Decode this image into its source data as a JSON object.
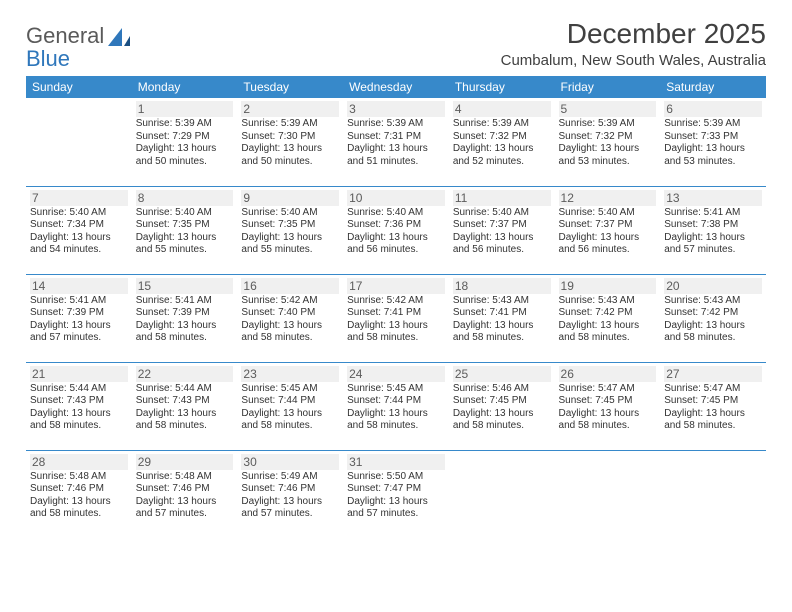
{
  "brand": {
    "part1": "General",
    "part2": "Blue"
  },
  "title": "December 2025",
  "subtitle": "Cumbalum, New South Wales, Australia",
  "colors": {
    "header_bg": "#3789ca",
    "header_fg": "#ffffff",
    "day_bg": "#f0f0f0",
    "rule": "#3789ca"
  },
  "weekdays": [
    "Sunday",
    "Monday",
    "Tuesday",
    "Wednesday",
    "Thursday",
    "Friday",
    "Saturday"
  ],
  "weeks": [
    [
      null,
      {
        "n": "1",
        "sr": "5:39 AM",
        "ss": "7:29 PM",
        "dl": "13 hours and 50 minutes."
      },
      {
        "n": "2",
        "sr": "5:39 AM",
        "ss": "7:30 PM",
        "dl": "13 hours and 50 minutes."
      },
      {
        "n": "3",
        "sr": "5:39 AM",
        "ss": "7:31 PM",
        "dl": "13 hours and 51 minutes."
      },
      {
        "n": "4",
        "sr": "5:39 AM",
        "ss": "7:32 PM",
        "dl": "13 hours and 52 minutes."
      },
      {
        "n": "5",
        "sr": "5:39 AM",
        "ss": "7:32 PM",
        "dl": "13 hours and 53 minutes."
      },
      {
        "n": "6",
        "sr": "5:39 AM",
        "ss": "7:33 PM",
        "dl": "13 hours and 53 minutes."
      }
    ],
    [
      {
        "n": "7",
        "sr": "5:40 AM",
        "ss": "7:34 PM",
        "dl": "13 hours and 54 minutes."
      },
      {
        "n": "8",
        "sr": "5:40 AM",
        "ss": "7:35 PM",
        "dl": "13 hours and 55 minutes."
      },
      {
        "n": "9",
        "sr": "5:40 AM",
        "ss": "7:35 PM",
        "dl": "13 hours and 55 minutes."
      },
      {
        "n": "10",
        "sr": "5:40 AM",
        "ss": "7:36 PM",
        "dl": "13 hours and 56 minutes."
      },
      {
        "n": "11",
        "sr": "5:40 AM",
        "ss": "7:37 PM",
        "dl": "13 hours and 56 minutes."
      },
      {
        "n": "12",
        "sr": "5:40 AM",
        "ss": "7:37 PM",
        "dl": "13 hours and 56 minutes."
      },
      {
        "n": "13",
        "sr": "5:41 AM",
        "ss": "7:38 PM",
        "dl": "13 hours and 57 minutes."
      }
    ],
    [
      {
        "n": "14",
        "sr": "5:41 AM",
        "ss": "7:39 PM",
        "dl": "13 hours and 57 minutes."
      },
      {
        "n": "15",
        "sr": "5:41 AM",
        "ss": "7:39 PM",
        "dl": "13 hours and 58 minutes."
      },
      {
        "n": "16",
        "sr": "5:42 AM",
        "ss": "7:40 PM",
        "dl": "13 hours and 58 minutes."
      },
      {
        "n": "17",
        "sr": "5:42 AM",
        "ss": "7:41 PM",
        "dl": "13 hours and 58 minutes."
      },
      {
        "n": "18",
        "sr": "5:43 AM",
        "ss": "7:41 PM",
        "dl": "13 hours and 58 minutes."
      },
      {
        "n": "19",
        "sr": "5:43 AM",
        "ss": "7:42 PM",
        "dl": "13 hours and 58 minutes."
      },
      {
        "n": "20",
        "sr": "5:43 AM",
        "ss": "7:42 PM",
        "dl": "13 hours and 58 minutes."
      }
    ],
    [
      {
        "n": "21",
        "sr": "5:44 AM",
        "ss": "7:43 PM",
        "dl": "13 hours and 58 minutes."
      },
      {
        "n": "22",
        "sr": "5:44 AM",
        "ss": "7:43 PM",
        "dl": "13 hours and 58 minutes."
      },
      {
        "n": "23",
        "sr": "5:45 AM",
        "ss": "7:44 PM",
        "dl": "13 hours and 58 minutes."
      },
      {
        "n": "24",
        "sr": "5:45 AM",
        "ss": "7:44 PM",
        "dl": "13 hours and 58 minutes."
      },
      {
        "n": "25",
        "sr": "5:46 AM",
        "ss": "7:45 PM",
        "dl": "13 hours and 58 minutes."
      },
      {
        "n": "26",
        "sr": "5:47 AM",
        "ss": "7:45 PM",
        "dl": "13 hours and 58 minutes."
      },
      {
        "n": "27",
        "sr": "5:47 AM",
        "ss": "7:45 PM",
        "dl": "13 hours and 58 minutes."
      }
    ],
    [
      {
        "n": "28",
        "sr": "5:48 AM",
        "ss": "7:46 PM",
        "dl": "13 hours and 58 minutes."
      },
      {
        "n": "29",
        "sr": "5:48 AM",
        "ss": "7:46 PM",
        "dl": "13 hours and 57 minutes."
      },
      {
        "n": "30",
        "sr": "5:49 AM",
        "ss": "7:46 PM",
        "dl": "13 hours and 57 minutes."
      },
      {
        "n": "31",
        "sr": "5:50 AM",
        "ss": "7:47 PM",
        "dl": "13 hours and 57 minutes."
      },
      null,
      null,
      null
    ]
  ],
  "labels": {
    "sunrise": "Sunrise:",
    "sunset": "Sunset:",
    "daylight": "Daylight:"
  }
}
